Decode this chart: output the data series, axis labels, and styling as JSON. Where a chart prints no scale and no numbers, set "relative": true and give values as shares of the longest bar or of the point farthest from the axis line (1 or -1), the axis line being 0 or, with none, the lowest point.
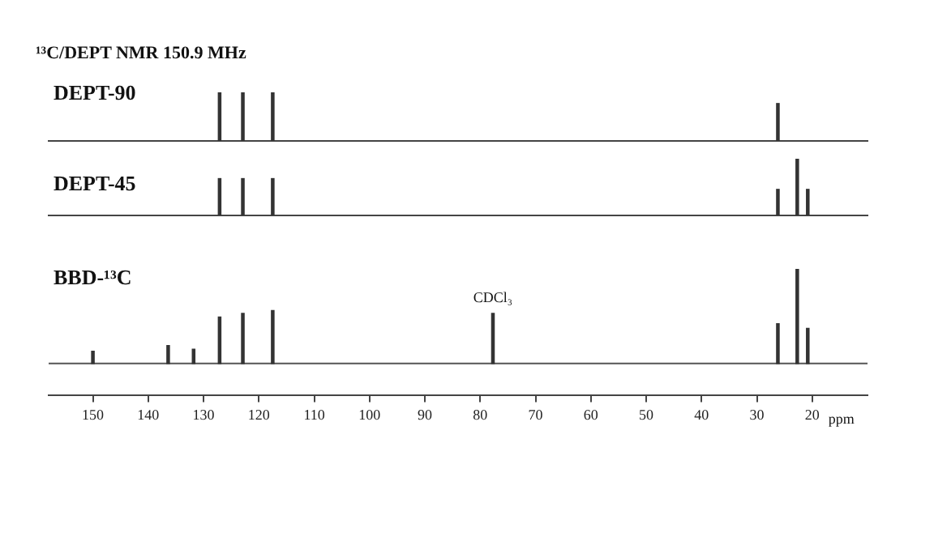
{
  "chart_data": [
    {
      "type": "bar",
      "title": "¹³C/DEPT NMR 150.9 MHz",
      "subtitle": "DEPT-90",
      "relative": true,
      "x": [
        127.1,
        122.9,
        117.5,
        26.2
      ],
      "values": [
        1,
        1,
        1,
        0.77
      ],
      "color": "#333333",
      "xlim": [
        158,
        10
      ],
      "tick_labels": false
    },
    {
      "type": "bar",
      "title": "DEPT-45",
      "relative": true,
      "x": [
        127.1,
        122.9,
        117.5,
        26.2,
        22.7,
        20.8
      ],
      "values": [
        0.65,
        0.65,
        0.65,
        0.46,
        1,
        0.46
      ],
      "color": "#333333",
      "xlim": [
        158,
        10
      ],
      "tick_labels": false
    },
    {
      "type": "bar",
      "title": "BBD-¹³C",
      "xlabel": "ppm",
      "relative": true,
      "x": [
        150,
        136.4,
        131.8,
        127.1,
        122.9,
        117.5,
        77.7,
        26.2,
        22.7,
        20.8
      ],
      "values": [
        0.13,
        0.19,
        0.15,
        0.49,
        0.53,
        0.56,
        0.53,
        0.42,
        1,
        0.37
      ],
      "color": "#333333",
      "xlim": [
        158,
        10
      ],
      "tick_labels": "x",
      "xticks": [
        150,
        140,
        130,
        120,
        110,
        100,
        90,
        80,
        70,
        60,
        50,
        40,
        30,
        20
      ],
      "annotations": [
        {
          "text": "CDCl₃",
          "x": 77.7,
          "y": 0.53
        }
      ]
    }
  ]
}
